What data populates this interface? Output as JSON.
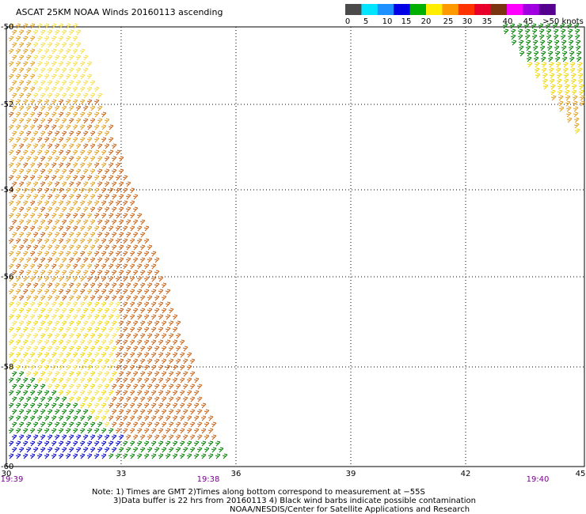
{
  "title": "ASCAT 25KM NOAA Winds 20160113 ascending",
  "legend": {
    "bins": [
      {
        "color": "#4a4a4a"
      },
      {
        "color": "#00e5ff"
      },
      {
        "color": "#1e90ff"
      },
      {
        "color": "#0000e6"
      },
      {
        "color": "#00b000"
      },
      {
        "color": "#ffee00"
      },
      {
        "color": "#ff9900"
      },
      {
        "color": "#ff3300"
      },
      {
        "color": "#e8002a"
      },
      {
        "color": "#7a3510"
      },
      {
        "color": "#ff00ff"
      },
      {
        "color": "#a000e0"
      },
      {
        "color": "#55008f"
      }
    ],
    "labels": [
      "0",
      "5",
      "10",
      "15",
      "20",
      "25",
      "30",
      "35",
      "40",
      "45",
      ">50 knots"
    ]
  },
  "axes": {
    "lon_ticks": [
      "30",
      "33",
      "36",
      "39",
      "42",
      "45"
    ],
    "lat_ticks": [
      "-50",
      "-52",
      "-54",
      "-56",
      "-58",
      "-60"
    ]
  },
  "times": [
    "19:39",
    "19:38",
    "19:40"
  ],
  "notes": [
    "Note: 1) Times are GMT 2)Times along bottom correspond to measurement at −55S",
    "3)Data buffer is 22 hrs from 20160113 4) Black wind barbs indicate possible contamination",
    "NOAA/NESDIS/Center for Satellite Applications and Research"
  ],
  "colors": {
    "grid": "#000000",
    "time_text": "#7a0090",
    "barb_yellow": "#f0d800",
    "barb_pale_yellow": "#f5e04a",
    "barb_orange": "#e0a020",
    "barb_dark_orange": "#c86418",
    "barb_green": "#008000",
    "barb_blue": "#0000cc"
  }
}
